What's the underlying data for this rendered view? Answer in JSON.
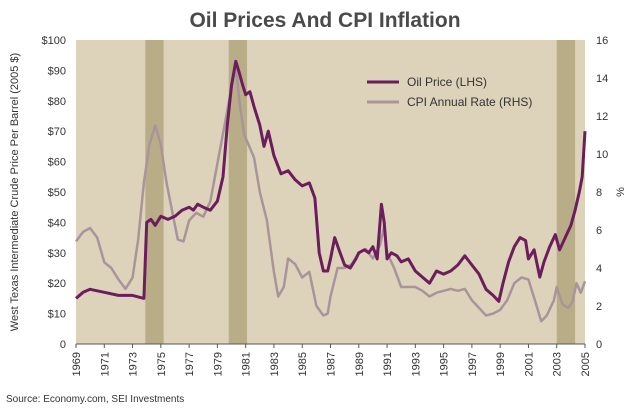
{
  "chart_data": {
    "type": "line",
    "title": "Oil Prices And CPI Inflation",
    "ylabel_left": "West Texas Intermediate Crude Price Per Barrel (2005 $)",
    "ylabel_right": "%",
    "source": "Source: Economy.com, SEI Investments",
    "xlim": [
      1969,
      2005
    ],
    "ylim_left": [
      0,
      100
    ],
    "ylim_right": [
      0,
      16
    ],
    "x_ticks": [
      "1969",
      "1971",
      "1973",
      "1975",
      "1977",
      "1979",
      "1981",
      "1983",
      "1985",
      "1987",
      "1989",
      "1991",
      "1993",
      "1995",
      "1997",
      "1999",
      "2001",
      "2003",
      "2005"
    ],
    "y_ticks_left": [
      "$100",
      "$90",
      "$80",
      "$70",
      "$60",
      "$50",
      "$40",
      "$30",
      "$20",
      "$10",
      "0"
    ],
    "y_ticks_right": [
      "16",
      "14",
      "12",
      "10",
      "8",
      "6",
      "4",
      "2",
      "0"
    ],
    "recessions": [
      [
        1973.9,
        1975.2
      ],
      [
        1979.8,
        1981.1
      ],
      [
        2003.0,
        2004.3
      ]
    ],
    "legend_position": "top-right",
    "colors": {
      "oil": "#6b1d5c",
      "cpi": "#a8949a",
      "background": "#ddd3bb",
      "recession": "#b9ad88"
    },
    "series": [
      {
        "name": "Oil Price (LHS)",
        "axis": "left",
        "points": [
          [
            1969.0,
            15
          ],
          [
            1969.5,
            17
          ],
          [
            1970.0,
            18
          ],
          [
            1971.0,
            17
          ],
          [
            1972.0,
            16
          ],
          [
            1973.0,
            16
          ],
          [
            1973.8,
            15
          ],
          [
            1974.0,
            40
          ],
          [
            1974.3,
            41
          ],
          [
            1974.6,
            39
          ],
          [
            1975.0,
            42
          ],
          [
            1975.5,
            41
          ],
          [
            1976.0,
            42
          ],
          [
            1976.5,
            44
          ],
          [
            1977.0,
            45
          ],
          [
            1977.3,
            44
          ],
          [
            1977.6,
            46
          ],
          [
            1978.0,
            45
          ],
          [
            1978.5,
            44
          ],
          [
            1979.0,
            47
          ],
          [
            1979.4,
            55
          ],
          [
            1979.7,
            72
          ],
          [
            1980.0,
            85
          ],
          [
            1980.3,
            93
          ],
          [
            1980.5,
            90
          ],
          [
            1980.8,
            85
          ],
          [
            1981.0,
            82
          ],
          [
            1981.3,
            83
          ],
          [
            1981.6,
            78
          ],
          [
            1982.0,
            72
          ],
          [
            1982.3,
            65
          ],
          [
            1982.6,
            70
          ],
          [
            1983.0,
            62
          ],
          [
            1983.5,
            56
          ],
          [
            1984.0,
            57
          ],
          [
            1984.5,
            54
          ],
          [
            1985.0,
            52
          ],
          [
            1985.5,
            53
          ],
          [
            1985.9,
            48
          ],
          [
            1986.2,
            30
          ],
          [
            1986.5,
            24
          ],
          [
            1986.8,
            24
          ],
          [
            1987.0,
            28
          ],
          [
            1987.3,
            35
          ],
          [
            1987.6,
            31
          ],
          [
            1988.0,
            26
          ],
          [
            1988.4,
            25
          ],
          [
            1988.8,
            28
          ],
          [
            1989.0,
            30
          ],
          [
            1989.4,
            31
          ],
          [
            1989.7,
            30
          ],
          [
            1990.0,
            32
          ],
          [
            1990.3,
            28
          ],
          [
            1990.6,
            46
          ],
          [
            1990.8,
            40
          ],
          [
            1991.0,
            28
          ],
          [
            1991.3,
            30
          ],
          [
            1991.7,
            29
          ],
          [
            1992.0,
            27
          ],
          [
            1992.5,
            28
          ],
          [
            1993.0,
            24
          ],
          [
            1993.5,
            22
          ],
          [
            1994.0,
            20
          ],
          [
            1994.5,
            24
          ],
          [
            1995.0,
            23
          ],
          [
            1995.5,
            24
          ],
          [
            1996.0,
            26
          ],
          [
            1996.5,
            29
          ],
          [
            1997.0,
            26
          ],
          [
            1997.5,
            23
          ],
          [
            1998.0,
            18
          ],
          [
            1998.5,
            16
          ],
          [
            1998.9,
            14
          ],
          [
            1999.2,
            20
          ],
          [
            1999.6,
            27
          ],
          [
            2000.0,
            32
          ],
          [
            2000.4,
            35
          ],
          [
            2000.8,
            34
          ],
          [
            2001.0,
            28
          ],
          [
            2001.4,
            31
          ],
          [
            2001.8,
            22
          ],
          [
            2002.1,
            27
          ],
          [
            2002.5,
            32
          ],
          [
            2002.9,
            36
          ],
          [
            2003.2,
            31
          ],
          [
            2003.6,
            35
          ],
          [
            2004.0,
            39
          ],
          [
            2004.3,
            44
          ],
          [
            2004.6,
            50
          ],
          [
            2004.8,
            55
          ],
          [
            2005.0,
            70
          ]
        ]
      },
      {
        "name": "CPI Annual Rate (RHS)",
        "axis": "right",
        "points": [
          [
            1969.0,
            5.4
          ],
          [
            1969.5,
            5.9
          ],
          [
            1970.0,
            6.1
          ],
          [
            1970.5,
            5.6
          ],
          [
            1971.0,
            4.3
          ],
          [
            1971.5,
            4.0
          ],
          [
            1972.0,
            3.4
          ],
          [
            1972.5,
            2.9
          ],
          [
            1973.0,
            3.5
          ],
          [
            1973.4,
            5.5
          ],
          [
            1973.8,
            8.5
          ],
          [
            1974.2,
            10.5
          ],
          [
            1974.6,
            11.5
          ],
          [
            1975.0,
            10.5
          ],
          [
            1975.4,
            8.5
          ],
          [
            1975.8,
            7.0
          ],
          [
            1976.2,
            5.5
          ],
          [
            1976.6,
            5.4
          ],
          [
            1977.0,
            6.5
          ],
          [
            1977.5,
            6.9
          ],
          [
            1978.0,
            6.7
          ],
          [
            1978.5,
            7.5
          ],
          [
            1979.0,
            9.5
          ],
          [
            1979.5,
            11.5
          ],
          [
            1980.0,
            13.5
          ],
          [
            1980.3,
            14.6
          ],
          [
            1980.6,
            12.5
          ],
          [
            1980.9,
            11.0
          ],
          [
            1981.2,
            10.5
          ],
          [
            1981.6,
            9.8
          ],
          [
            1982.0,
            8.0
          ],
          [
            1982.5,
            6.5
          ],
          [
            1983.0,
            3.8
          ],
          [
            1983.3,
            2.5
          ],
          [
            1983.7,
            3.0
          ],
          [
            1984.0,
            4.5
          ],
          [
            1984.5,
            4.2
          ],
          [
            1985.0,
            3.5
          ],
          [
            1985.5,
            3.8
          ],
          [
            1986.0,
            2.0
          ],
          [
            1986.5,
            1.5
          ],
          [
            1986.8,
            1.6
          ],
          [
            1987.0,
            2.5
          ],
          [
            1987.5,
            4.0
          ],
          [
            1988.0,
            4.0
          ],
          [
            1988.5,
            4.2
          ],
          [
            1989.0,
            4.8
          ],
          [
            1989.5,
            5.0
          ],
          [
            1990.0,
            4.5
          ],
          [
            1990.5,
            5.2
          ],
          [
            1990.8,
            6.2
          ],
          [
            1991.0,
            4.8
          ],
          [
            1991.5,
            4.0
          ],
          [
            1992.0,
            3.0
          ],
          [
            1993.0,
            3.0
          ],
          [
            1993.5,
            2.8
          ],
          [
            1994.0,
            2.5
          ],
          [
            1994.5,
            2.7
          ],
          [
            1995.0,
            2.8
          ],
          [
            1995.5,
            2.9
          ],
          [
            1996.0,
            2.8
          ],
          [
            1996.5,
            2.9
          ],
          [
            1997.0,
            2.3
          ],
          [
            1997.5,
            1.9
          ],
          [
            1998.0,
            1.5
          ],
          [
            1998.5,
            1.6
          ],
          [
            1999.0,
            1.8
          ],
          [
            1999.5,
            2.3
          ],
          [
            2000.0,
            3.2
          ],
          [
            2000.5,
            3.5
          ],
          [
            2001.0,
            3.4
          ],
          [
            2001.5,
            2.2
          ],
          [
            2001.9,
            1.2
          ],
          [
            2002.3,
            1.5
          ],
          [
            2002.8,
            2.3
          ],
          [
            2003.0,
            3.0
          ],
          [
            2003.4,
            2.1
          ],
          [
            2003.8,
            1.9
          ],
          [
            2004.1,
            2.2
          ],
          [
            2004.4,
            3.2
          ],
          [
            2004.7,
            2.7
          ],
          [
            2005.0,
            3.3
          ]
        ]
      }
    ]
  }
}
